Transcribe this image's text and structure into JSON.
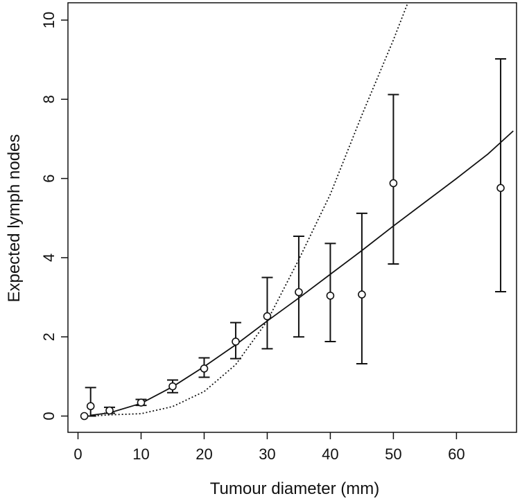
{
  "chart_data": {
    "type": "scatter",
    "title": "",
    "xlabel": "Tumour diameter (mm)",
    "ylabel": "Expected lymph nodes",
    "xlim": [
      0,
      69
    ],
    "ylim": [
      0,
      10.4
    ],
    "xticks": [
      0,
      10,
      20,
      30,
      40,
      50,
      60
    ],
    "yticks": [
      0,
      2,
      4,
      6,
      8,
      10
    ],
    "grid": false,
    "legend": "none",
    "points": [
      {
        "x": 1,
        "y": 0.0,
        "lo": null,
        "hi": null
      },
      {
        "x": 2,
        "y": 0.25,
        "lo": 0.0,
        "hi": 0.72
      },
      {
        "x": 5,
        "y": 0.14,
        "lo": 0.07,
        "hi": 0.22
      },
      {
        "x": 10,
        "y": 0.34,
        "lo": 0.27,
        "hi": 0.42
      },
      {
        "x": 15,
        "y": 0.75,
        "lo": 0.59,
        "hi": 0.91
      },
      {
        "x": 20,
        "y": 1.2,
        "lo": 0.98,
        "hi": 1.47
      },
      {
        "x": 25,
        "y": 1.88,
        "lo": 1.45,
        "hi": 2.36
      },
      {
        "x": 30,
        "y": 2.52,
        "lo": 1.7,
        "hi": 3.5
      },
      {
        "x": 35,
        "y": 3.13,
        "lo": 2.0,
        "hi": 4.54
      },
      {
        "x": 40,
        "y": 3.04,
        "lo": 1.88,
        "hi": 4.36
      },
      {
        "x": 45,
        "y": 3.07,
        "lo": 1.32,
        "hi": 5.12
      },
      {
        "x": 50,
        "y": 5.88,
        "lo": 3.84,
        "hi": 8.12
      },
      {
        "x": 67,
        "y": 5.76,
        "lo": 3.14,
        "hi": 9.02
      }
    ],
    "series": [
      {
        "style": "solid",
        "x": [
          2,
          5,
          10,
          15,
          20,
          25,
          30,
          35,
          40,
          45,
          50,
          55,
          60,
          65,
          69
        ],
        "y": [
          0.02,
          0.08,
          0.32,
          0.74,
          1.25,
          1.8,
          2.4,
          2.98,
          3.58,
          4.18,
          4.8,
          5.4,
          6.0,
          6.62,
          7.2
        ]
      },
      {
        "style": "dotted",
        "x": [
          2,
          5,
          10,
          15,
          20,
          25,
          30,
          35,
          40,
          45,
          50,
          52.2
        ],
        "y": [
          0.0,
          0.03,
          0.06,
          0.24,
          0.62,
          1.3,
          2.4,
          3.95,
          5.6,
          7.6,
          9.5,
          10.4
        ]
      }
    ]
  }
}
